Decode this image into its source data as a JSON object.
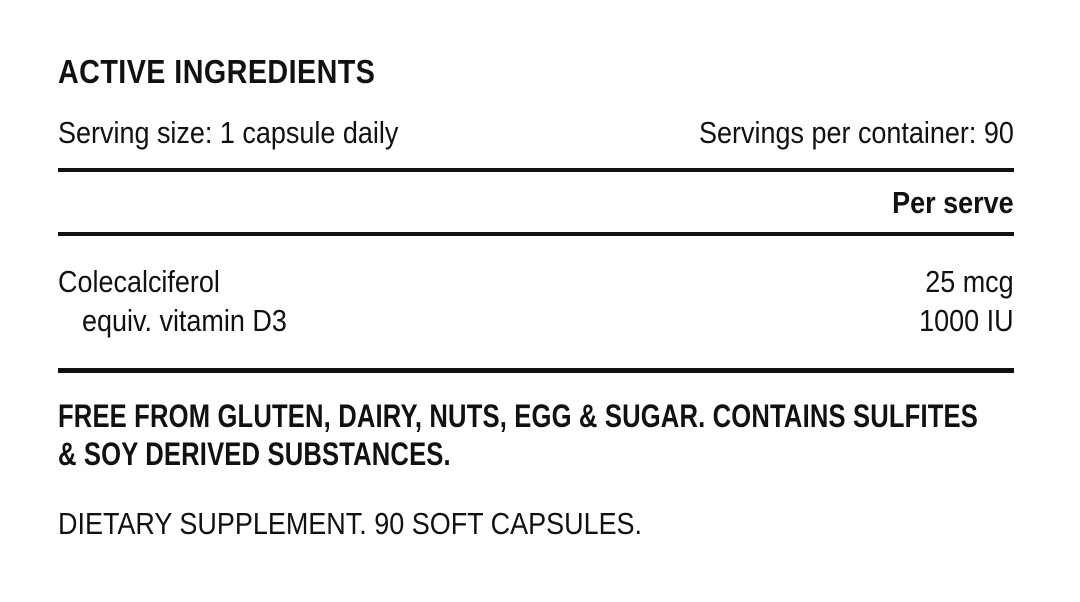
{
  "label": {
    "title": "ACTIVE INGREDIENTS",
    "serving_size": "Serving size: 1 capsule daily",
    "servings_per_container": "Servings per container: 90",
    "column_header": "Per serve",
    "ingredients": [
      {
        "name": "Colecalciferol",
        "amount": "25 mcg"
      },
      {
        "name": "equiv. vitamin D3",
        "amount": "1000 IU"
      }
    ],
    "free_from_lines": [
      "FREE FROM GLUTEN, DAIRY, NUTS, EGG & SUGAR. CONTAINS SULFITES",
      "& SOY DERIVED SUBSTANCES."
    ],
    "footer": "DIETARY SUPPLEMENT. 90 SOFT CAPSULES."
  },
  "colors": {
    "text": "#111111",
    "rule": "#111111",
    "background": "#ffffff"
  }
}
